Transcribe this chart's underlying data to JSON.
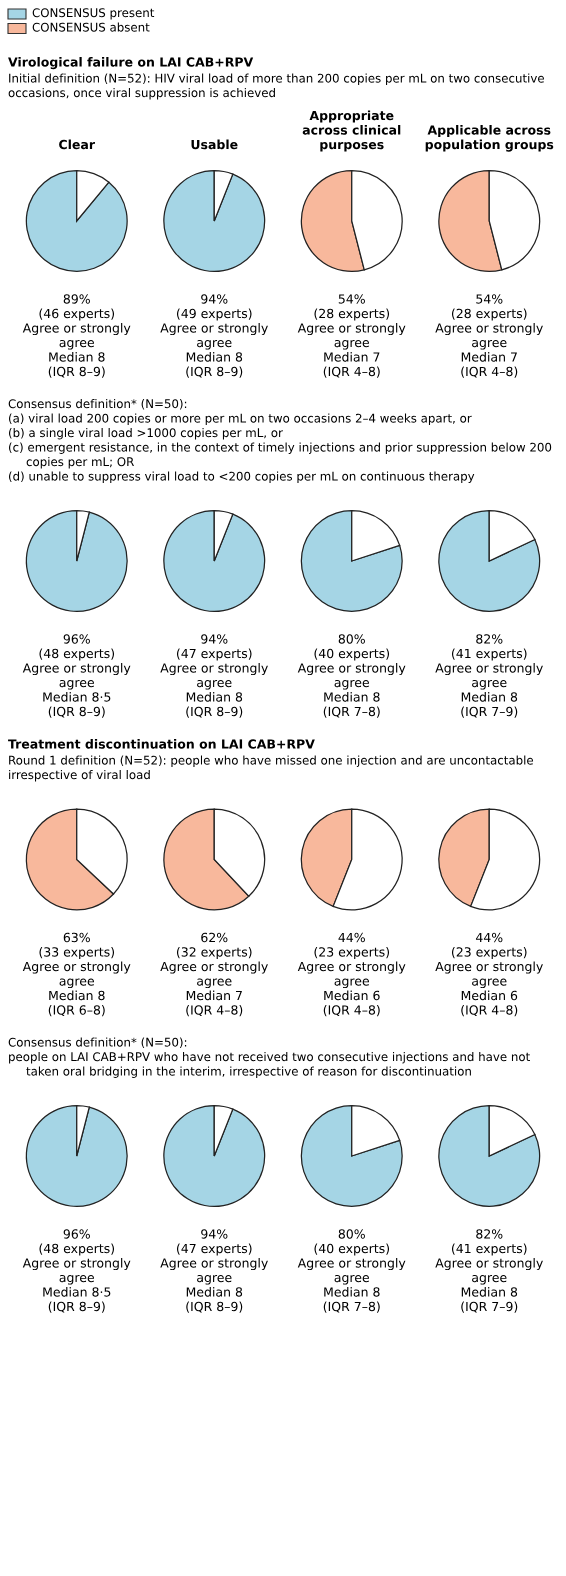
{
  "chart_data": [
    {
      "type": "other",
      "legend": "top left",
      "series": [
        {
          "name": "CONSENSUS present",
          "color": "#a5d5e5"
        },
        {
          "name": "CONSENSUS absent",
          "color": "#f8b89c"
        }
      ]
    },
    {
      "type": "other",
      "title": "Virological failure on LAI CAB+RPV",
      "subtitle": "Initial definition (N=52): HIV viral load of more than 200 copies per mL on two consecutive occasions, once viral suppression is achieved"
    },
    {
      "type": "pie",
      "title": "Clear",
      "categories": [
        null,
        null
      ],
      "values": [
        89,
        11
      ],
      "colors": [
        "#a5d5e5",
        "#ffffff"
      ],
      "annotations": [
        "89%",
        "(46 experts)",
        "Agree or strongly agree",
        "Median 8",
        "(IQR 8–9)"
      ]
    },
    {
      "type": "pie",
      "title": "Usable",
      "categories": [
        null,
        null
      ],
      "values": [
        94,
        6
      ],
      "colors": [
        "#a5d5e5",
        "#ffffff"
      ],
      "annotations": [
        "94%",
        "(49 experts)",
        "Agree or strongly agree",
        "Median 8",
        "(IQR 8–9)"
      ]
    },
    {
      "type": "pie",
      "title": "Appropriate across clinical purposes",
      "categories": [
        null,
        null
      ],
      "values": [
        54,
        46
      ],
      "colors": [
        "#f8b89c",
        "#ffffff"
      ],
      "annotations": [
        "54%",
        "(28 experts)",
        "Agree or strongly agree",
        "Median 7",
        "(IQR 4–8)"
      ]
    },
    {
      "type": "pie",
      "title": "Applicable across population groups",
      "categories": [
        null,
        null
      ],
      "values": [
        54,
        46
      ],
      "colors": [
        "#f8b89c",
        "#ffffff"
      ],
      "annotations": [
        "54%",
        "(28 experts)",
        "Agree or strongly agree",
        "Median 7",
        "(IQR 4–8)"
      ]
    },
    {
      "type": "other",
      "annotations": [
        "Consensus definition* (N=50):",
        "(a) viral load 200 copies or more per mL on two occasions 2–4 weeks apart, or",
        "(b) a single viral load >1000 copies per mL, or",
        "(c) emergent resistance, in the context of timely injections and prior suppression below 200 copies per mL; OR",
        "(d) unable to suppress viral load to <200 copies per mL on continuous therapy"
      ]
    },
    {
      "type": "pie",
      "categories": [
        null,
        null
      ],
      "values": [
        96,
        4
      ],
      "colors": [
        "#a5d5e5",
        "#ffffff"
      ],
      "annotations": [
        "96%",
        "(48 experts)",
        "Agree or strongly agree",
        "Median 8·5",
        "(IQR 8–9)"
      ]
    },
    {
      "type": "pie",
      "categories": [
        null,
        null
      ],
      "values": [
        94,
        6
      ],
      "colors": [
        "#a5d5e5",
        "#ffffff"
      ],
      "annotations": [
        "94%",
        "(47 experts)",
        "Agree or strongly agree",
        "Median 8",
        "(IQR 8–9)"
      ]
    },
    {
      "type": "pie",
      "categories": [
        null,
        null
      ],
      "values": [
        80,
        20
      ],
      "colors": [
        "#a5d5e5",
        "#ffffff"
      ],
      "annotations": [
        "80%",
        "(40 experts)",
        "Agree or strongly agree",
        "Median 8",
        "(IQR 7–8)"
      ]
    },
    {
      "type": "pie",
      "categories": [
        null,
        null
      ],
      "values": [
        82,
        18
      ],
      "colors": [
        "#a5d5e5",
        "#ffffff"
      ],
      "annotations": [
        "82%",
        "(41 experts)",
        "Agree or strongly agree",
        "Median 8",
        "(IQR 7–9)"
      ]
    },
    {
      "type": "other",
      "title": "Treatment discontinuation on LAI CAB+RPV",
      "subtitle": "Round 1 definition (N=52): people who have missed one injection and are uncontactable irrespective of viral load"
    },
    {
      "type": "pie",
      "categories": [
        null,
        null
      ],
      "values": [
        63,
        37
      ],
      "colors": [
        "#f8b89c",
        "#ffffff"
      ],
      "annotations": [
        "63%",
        "(33 experts)",
        "Agree or strongly agree",
        "Median 8",
        "(IQR 6–8)"
      ]
    },
    {
      "type": "pie",
      "categories": [
        null,
        null
      ],
      "values": [
        62,
        38
      ],
      "colors": [
        "#f8b89c",
        "#ffffff"
      ],
      "annotations": [
        "62%",
        "(32 experts)",
        "Agree or strongly agree",
        "Median 7",
        "(IQR 4–8)"
      ]
    },
    {
      "type": "pie",
      "categories": [
        null,
        null
      ],
      "values": [
        44,
        56
      ],
      "colors": [
        "#f8b89c",
        "#ffffff"
      ],
      "annotations": [
        "44%",
        "(23 experts)",
        "Agree or strongly agree",
        "Median 6",
        "(IQR 4–8)"
      ]
    },
    {
      "type": "pie",
      "categories": [
        null,
        null
      ],
      "values": [
        44,
        56
      ],
      "colors": [
        "#f8b89c",
        "#ffffff"
      ],
      "annotations": [
        "44%",
        "(23 experts)",
        "Agree or strongly agree",
        "Median 6",
        "(IQR 4–8)"
      ]
    },
    {
      "type": "other",
      "annotations": [
        "Consensus definition* (N=50):",
        "people on LAI CAB+RPV who have not received two consecutive injections and have not taken oral bridging in the interim, irrespective of reason for discontinuation"
      ]
    },
    {
      "type": "pie",
      "categories": [
        null,
        null
      ],
      "values": [
        96,
        4
      ],
      "colors": [
        "#a5d5e5",
        "#ffffff"
      ],
      "annotations": [
        "96%",
        "(48 experts)",
        "Agree or strongly agree",
        "Median 8·5",
        "(IQR 8–9)"
      ]
    },
    {
      "type": "pie",
      "categories": [
        null,
        null
      ],
      "values": [
        94,
        6
      ],
      "colors": [
        "#a5d5e5",
        "#ffffff"
      ],
      "annotations": [
        "94%",
        "(47 experts)",
        "Agree or strongly agree",
        "Median 8",
        "(IQR 8–9)"
      ]
    },
    {
      "type": "pie",
      "categories": [
        null,
        null
      ],
      "values": [
        80,
        20
      ],
      "colors": [
        "#a5d5e5",
        "#ffffff"
      ],
      "annotations": [
        "80%",
        "(40 experts)",
        "Agree or strongly agree",
        "Median 8",
        "(IQR 7–8)"
      ]
    },
    {
      "type": "pie",
      "categories": [
        null,
        null
      ],
      "values": [
        82,
        18
      ],
      "colors": [
        "#a5d5e5",
        "#ffffff"
      ],
      "annotations": [
        "82%",
        "(41 experts)",
        "Agree or strongly agree",
        "Median 8",
        "(IQR 7–9)"
      ]
    }
  ]
}
